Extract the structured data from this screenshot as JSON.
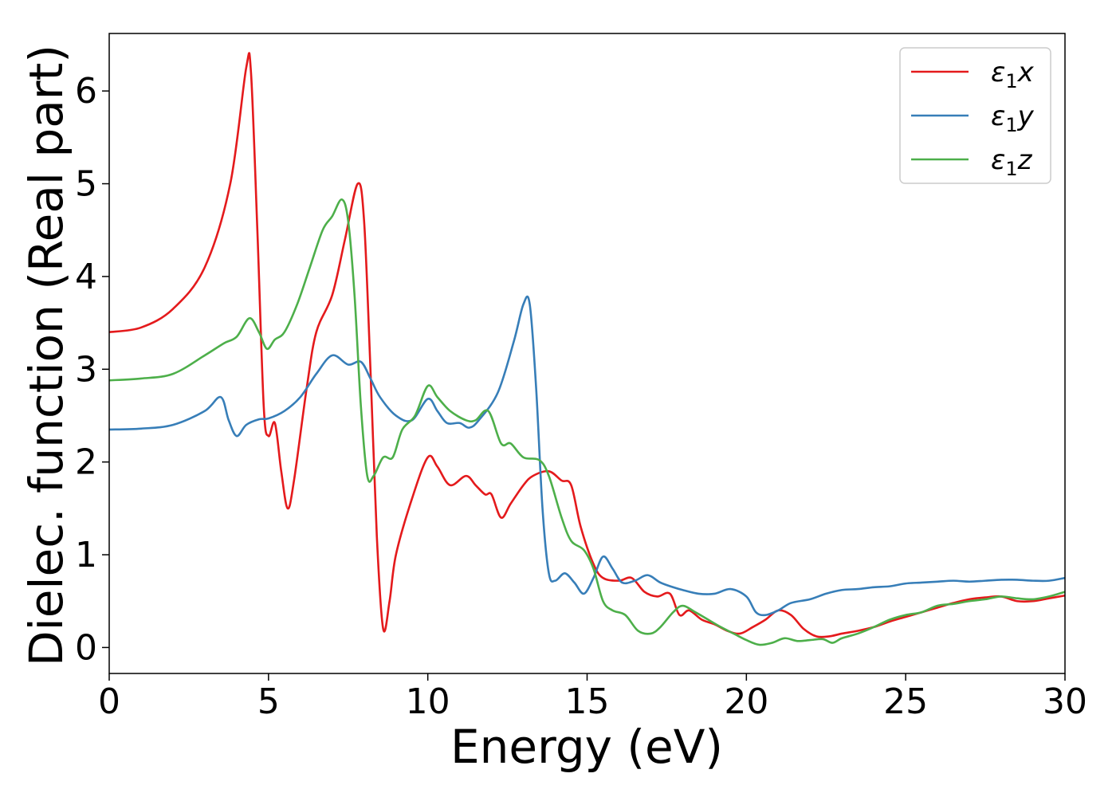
{
  "chart_data": {
    "type": "line",
    "xlabel": "Energy (eV)",
    "ylabel": "Dielec. function (Real part)",
    "xlim": [
      0,
      30
    ],
    "ylim": [
      -0.28,
      6.62
    ],
    "xticks": [
      {
        "value": 0,
        "label": "0"
      },
      {
        "value": 5,
        "label": "5"
      },
      {
        "value": 10,
        "label": "10"
      },
      {
        "value": 15,
        "label": "15"
      },
      {
        "value": 20,
        "label": "20"
      },
      {
        "value": 25,
        "label": "25"
      },
      {
        "value": 30,
        "label": "30"
      }
    ],
    "yticks": [
      {
        "value": 0,
        "label": "0"
      },
      {
        "value": 1,
        "label": "1"
      },
      {
        "value": 2,
        "label": "2"
      },
      {
        "value": 3,
        "label": "3"
      },
      {
        "value": 4,
        "label": "4"
      },
      {
        "value": 5,
        "label": "5"
      },
      {
        "value": 6,
        "label": "6"
      }
    ],
    "grid": false,
    "legend_position": "top-right",
    "series": [
      {
        "name": "ε₁x",
        "legend_main": "ε",
        "legend_sub": "1",
        "legend_tail": "x",
        "color": "#e41a1c",
        "points": [
          [
            0,
            3.4
          ],
          [
            1,
            3.45
          ],
          [
            2,
            3.65
          ],
          [
            3,
            4.1
          ],
          [
            3.8,
            5.0
          ],
          [
            4.3,
            6.25
          ],
          [
            4.45,
            6.2
          ],
          [
            4.65,
            4.5
          ],
          [
            4.85,
            2.6
          ],
          [
            5.0,
            2.28
          ],
          [
            5.2,
            2.42
          ],
          [
            5.4,
            1.9
          ],
          [
            5.6,
            1.5
          ],
          [
            5.8,
            1.8
          ],
          [
            6.2,
            2.8
          ],
          [
            6.5,
            3.4
          ],
          [
            7.0,
            3.8
          ],
          [
            7.4,
            4.4
          ],
          [
            7.8,
            5.0
          ],
          [
            8.0,
            4.6
          ],
          [
            8.2,
            3.0
          ],
          [
            8.4,
            1.2
          ],
          [
            8.6,
            0.2
          ],
          [
            8.8,
            0.5
          ],
          [
            9.0,
            1.0
          ],
          [
            9.5,
            1.6
          ],
          [
            10.0,
            2.05
          ],
          [
            10.3,
            1.95
          ],
          [
            10.7,
            1.75
          ],
          [
            11.2,
            1.85
          ],
          [
            11.5,
            1.75
          ],
          [
            11.8,
            1.65
          ],
          [
            12.0,
            1.65
          ],
          [
            12.3,
            1.4
          ],
          [
            12.6,
            1.55
          ],
          [
            13.0,
            1.75
          ],
          [
            13.3,
            1.85
          ],
          [
            13.8,
            1.9
          ],
          [
            14.2,
            1.8
          ],
          [
            14.5,
            1.75
          ],
          [
            14.8,
            1.3
          ],
          [
            15.2,
            0.9
          ],
          [
            15.5,
            0.75
          ],
          [
            16.0,
            0.72
          ],
          [
            16.4,
            0.75
          ],
          [
            16.8,
            0.6
          ],
          [
            17.2,
            0.55
          ],
          [
            17.6,
            0.58
          ],
          [
            17.9,
            0.35
          ],
          [
            18.2,
            0.4
          ],
          [
            18.6,
            0.3
          ],
          [
            19.0,
            0.25
          ],
          [
            19.4,
            0.18
          ],
          [
            19.8,
            0.15
          ],
          [
            20.2,
            0.22
          ],
          [
            20.6,
            0.3
          ],
          [
            21.0,
            0.4
          ],
          [
            21.4,
            0.35
          ],
          [
            21.8,
            0.2
          ],
          [
            22.2,
            0.12
          ],
          [
            22.6,
            0.12
          ],
          [
            23.0,
            0.15
          ],
          [
            23.5,
            0.18
          ],
          [
            24.0,
            0.22
          ],
          [
            24.5,
            0.28
          ],
          [
            25.0,
            0.33
          ],
          [
            25.5,
            0.38
          ],
          [
            26.0,
            0.43
          ],
          [
            26.5,
            0.48
          ],
          [
            27.0,
            0.52
          ],
          [
            27.5,
            0.54
          ],
          [
            28.0,
            0.55
          ],
          [
            28.5,
            0.5
          ],
          [
            29.0,
            0.5
          ],
          [
            29.5,
            0.53
          ],
          [
            30.0,
            0.56
          ]
        ]
      },
      {
        "name": "ε₁y",
        "legend_main": "ε",
        "legend_sub": "1",
        "legend_tail": "y",
        "color": "#377eb8",
        "points": [
          [
            0,
            2.35
          ],
          [
            1,
            2.36
          ],
          [
            2,
            2.4
          ],
          [
            3,
            2.55
          ],
          [
            3.5,
            2.7
          ],
          [
            3.75,
            2.45
          ],
          [
            4.0,
            2.28
          ],
          [
            4.3,
            2.4
          ],
          [
            4.7,
            2.46
          ],
          [
            5.0,
            2.47
          ],
          [
            5.5,
            2.55
          ],
          [
            6.0,
            2.7
          ],
          [
            6.5,
            2.95
          ],
          [
            7.0,
            3.15
          ],
          [
            7.5,
            3.05
          ],
          [
            7.9,
            3.08
          ],
          [
            8.2,
            2.9
          ],
          [
            8.5,
            2.7
          ],
          [
            9.0,
            2.5
          ],
          [
            9.5,
            2.45
          ],
          [
            10.0,
            2.68
          ],
          [
            10.3,
            2.55
          ],
          [
            10.6,
            2.42
          ],
          [
            11.0,
            2.42
          ],
          [
            11.3,
            2.37
          ],
          [
            11.6,
            2.45
          ],
          [
            12.2,
            2.75
          ],
          [
            12.7,
            3.3
          ],
          [
            13.0,
            3.7
          ],
          [
            13.2,
            3.7
          ],
          [
            13.4,
            2.8
          ],
          [
            13.6,
            1.5
          ],
          [
            13.8,
            0.8
          ],
          [
            14.0,
            0.72
          ],
          [
            14.3,
            0.8
          ],
          [
            14.6,
            0.7
          ],
          [
            14.9,
            0.58
          ],
          [
            15.2,
            0.75
          ],
          [
            15.5,
            0.98
          ],
          [
            15.8,
            0.85
          ],
          [
            16.1,
            0.7
          ],
          [
            16.5,
            0.72
          ],
          [
            16.9,
            0.78
          ],
          [
            17.3,
            0.7
          ],
          [
            17.7,
            0.65
          ],
          [
            18.0,
            0.62
          ],
          [
            18.5,
            0.58
          ],
          [
            19.0,
            0.58
          ],
          [
            19.5,
            0.63
          ],
          [
            20.0,
            0.55
          ],
          [
            20.3,
            0.38
          ],
          [
            20.6,
            0.35
          ],
          [
            21.0,
            0.4
          ],
          [
            21.4,
            0.48
          ],
          [
            22.0,
            0.52
          ],
          [
            22.5,
            0.58
          ],
          [
            23.0,
            0.62
          ],
          [
            23.5,
            0.63
          ],
          [
            24.0,
            0.65
          ],
          [
            24.5,
            0.66
          ],
          [
            25.0,
            0.69
          ],
          [
            25.5,
            0.7
          ],
          [
            26.0,
            0.71
          ],
          [
            26.5,
            0.72
          ],
          [
            27.0,
            0.71
          ],
          [
            27.5,
            0.72
          ],
          [
            28.0,
            0.73
          ],
          [
            28.5,
            0.73
          ],
          [
            29.0,
            0.72
          ],
          [
            29.5,
            0.72
          ],
          [
            30.0,
            0.75
          ]
        ]
      },
      {
        "name": "ε₁z",
        "legend_main": "ε",
        "legend_sub": "1",
        "legend_tail": "z",
        "color": "#4daf4a",
        "points": [
          [
            0,
            2.88
          ],
          [
            1,
            2.9
          ],
          [
            2,
            2.95
          ],
          [
            3,
            3.15
          ],
          [
            3.6,
            3.28
          ],
          [
            4.0,
            3.35
          ],
          [
            4.4,
            3.55
          ],
          [
            4.7,
            3.4
          ],
          [
            4.95,
            3.22
          ],
          [
            5.2,
            3.32
          ],
          [
            5.5,
            3.4
          ],
          [
            5.9,
            3.7
          ],
          [
            6.3,
            4.1
          ],
          [
            6.7,
            4.5
          ],
          [
            7.0,
            4.65
          ],
          [
            7.3,
            4.83
          ],
          [
            7.5,
            4.6
          ],
          [
            7.7,
            3.8
          ],
          [
            7.9,
            2.6
          ],
          [
            8.1,
            1.85
          ],
          [
            8.3,
            1.85
          ],
          [
            8.6,
            2.05
          ],
          [
            8.9,
            2.05
          ],
          [
            9.2,
            2.35
          ],
          [
            9.6,
            2.5
          ],
          [
            10.0,
            2.82
          ],
          [
            10.3,
            2.7
          ],
          [
            10.7,
            2.55
          ],
          [
            11.2,
            2.45
          ],
          [
            11.5,
            2.45
          ],
          [
            11.9,
            2.55
          ],
          [
            12.3,
            2.2
          ],
          [
            12.6,
            2.2
          ],
          [
            13.0,
            2.05
          ],
          [
            13.5,
            2.02
          ],
          [
            13.8,
            1.85
          ],
          [
            14.2,
            1.4
          ],
          [
            14.5,
            1.15
          ],
          [
            14.9,
            1.05
          ],
          [
            15.2,
            0.85
          ],
          [
            15.5,
            0.5
          ],
          [
            15.8,
            0.4
          ],
          [
            16.2,
            0.35
          ],
          [
            16.6,
            0.18
          ],
          [
            17.0,
            0.15
          ],
          [
            17.3,
            0.22
          ],
          [
            17.7,
            0.38
          ],
          [
            18.0,
            0.45
          ],
          [
            18.4,
            0.38
          ],
          [
            18.8,
            0.3
          ],
          [
            19.2,
            0.22
          ],
          [
            19.6,
            0.15
          ],
          [
            20.0,
            0.08
          ],
          [
            20.4,
            0.03
          ],
          [
            20.8,
            0.05
          ],
          [
            21.2,
            0.1
          ],
          [
            21.6,
            0.07
          ],
          [
            22.0,
            0.08
          ],
          [
            22.4,
            0.09
          ],
          [
            22.7,
            0.05
          ],
          [
            23.0,
            0.1
          ],
          [
            23.5,
            0.15
          ],
          [
            24.0,
            0.22
          ],
          [
            24.5,
            0.3
          ],
          [
            25.0,
            0.35
          ],
          [
            25.5,
            0.38
          ],
          [
            26.0,
            0.45
          ],
          [
            26.5,
            0.47
          ],
          [
            27.0,
            0.5
          ],
          [
            27.5,
            0.52
          ],
          [
            28.0,
            0.55
          ],
          [
            28.5,
            0.53
          ],
          [
            29.0,
            0.52
          ],
          [
            29.5,
            0.55
          ],
          [
            30.0,
            0.6
          ]
        ]
      }
    ]
  }
}
